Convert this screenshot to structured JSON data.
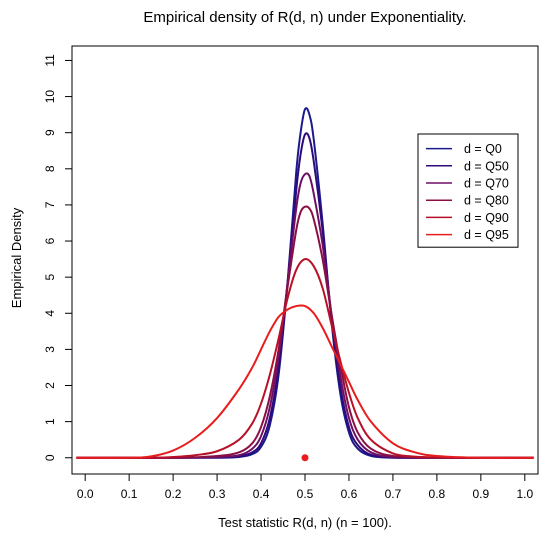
{
  "chart_data": {
    "type": "line",
    "title": "Empirical density of R(d, n) under Exponentiality.",
    "xlabel": "Test statistic R(d, n) (n = 100).",
    "ylabel": "Empirical Density",
    "xlim": [
      -0.03,
      1.03
    ],
    "ylim": [
      -0.45,
      11.4
    ],
    "xticks": [
      "0.0",
      "0.1",
      "0.2",
      "0.3",
      "0.4",
      "0.5",
      "0.6",
      "0.7",
      "0.8",
      "0.9",
      "1.0"
    ],
    "yticks": [
      "0",
      "1",
      "2",
      "3",
      "4",
      "5",
      "6",
      "7",
      "8",
      "9",
      "10",
      "11"
    ],
    "grid": false,
    "legend_position": "right",
    "series": [
      {
        "name": "d = Q0",
        "color": "#1a1a8c",
        "x": [
          -0.02,
          0.2,
          0.3,
          0.35,
          0.38,
          0.4,
          0.42,
          0.44,
          0.46,
          0.48,
          0.49,
          0.5,
          0.51,
          0.52,
          0.54,
          0.56,
          0.58,
          0.6,
          0.62,
          0.65,
          0.7,
          0.8,
          1.02
        ],
        "y": [
          0,
          0,
          0,
          0.02,
          0.1,
          0.3,
          0.9,
          2.3,
          4.8,
          7.9,
          9.0,
          9.65,
          9.5,
          8.8,
          6.5,
          3.8,
          1.8,
          0.7,
          0.25,
          0.05,
          0,
          0,
          0
        ]
      },
      {
        "name": "d = Q50",
        "color": "#2e0a7a",
        "x": [
          -0.02,
          0.2,
          0.3,
          0.35,
          0.38,
          0.4,
          0.42,
          0.44,
          0.46,
          0.48,
          0.49,
          0.5,
          0.51,
          0.52,
          0.54,
          0.56,
          0.58,
          0.6,
          0.62,
          0.65,
          0.7,
          0.8,
          1.02
        ],
        "y": [
          0,
          0,
          0.01,
          0.04,
          0.15,
          0.4,
          1.1,
          2.5,
          4.8,
          7.4,
          8.4,
          8.95,
          8.85,
          8.2,
          6.3,
          3.9,
          2.0,
          0.85,
          0.35,
          0.08,
          0.01,
          0,
          0
        ]
      },
      {
        "name": "d = Q70",
        "color": "#6e0f66",
        "x": [
          -0.02,
          0.2,
          0.3,
          0.35,
          0.38,
          0.4,
          0.42,
          0.44,
          0.46,
          0.48,
          0.49,
          0.5,
          0.51,
          0.52,
          0.54,
          0.56,
          0.58,
          0.6,
          0.62,
          0.65,
          0.7,
          0.8,
          1.02
        ],
        "y": [
          0,
          0,
          0.02,
          0.07,
          0.25,
          0.6,
          1.4,
          2.8,
          4.8,
          6.9,
          7.6,
          7.85,
          7.8,
          7.3,
          5.9,
          4.0,
          2.3,
          1.1,
          0.5,
          0.15,
          0.02,
          0,
          0
        ]
      },
      {
        "name": "d = Q80",
        "color": "#8a0f45",
        "x": [
          -0.02,
          0.2,
          0.3,
          0.35,
          0.38,
          0.4,
          0.42,
          0.44,
          0.46,
          0.48,
          0.49,
          0.5,
          0.51,
          0.52,
          0.54,
          0.56,
          0.58,
          0.6,
          0.62,
          0.65,
          0.7,
          0.8,
          1.02
        ],
        "y": [
          0,
          0,
          0.05,
          0.15,
          0.4,
          0.85,
          1.7,
          3.0,
          4.7,
          6.3,
          6.8,
          6.95,
          6.9,
          6.6,
          5.5,
          4.0,
          2.6,
          1.4,
          0.7,
          0.25,
          0.05,
          0,
          0
        ]
      },
      {
        "name": "d = Q90",
        "color": "#b81026",
        "x": [
          -0.02,
          0.15,
          0.2,
          0.25,
          0.3,
          0.35,
          0.38,
          0.4,
          0.42,
          0.44,
          0.46,
          0.48,
          0.5,
          0.52,
          0.54,
          0.56,
          0.58,
          0.6,
          0.62,
          0.65,
          0.7,
          0.75,
          0.8,
          0.9,
          1.02
        ],
        "y": [
          0,
          0,
          0.02,
          0.07,
          0.18,
          0.5,
          0.95,
          1.5,
          2.3,
          3.3,
          4.4,
          5.2,
          5.5,
          5.3,
          4.7,
          3.7,
          2.7,
          1.8,
          1.1,
          0.5,
          0.12,
          0.03,
          0.01,
          0,
          0
        ]
      },
      {
        "name": "d = Q95",
        "color": "#e81d1d",
        "x": [
          -0.02,
          0.1,
          0.15,
          0.2,
          0.25,
          0.3,
          0.35,
          0.38,
          0.4,
          0.42,
          0.44,
          0.46,
          0.48,
          0.5,
          0.52,
          0.54,
          0.56,
          0.58,
          0.6,
          0.62,
          0.65,
          0.7,
          0.75,
          0.8,
          0.9,
          1.02
        ],
        "y": [
          0,
          0,
          0.04,
          0.2,
          0.55,
          1.1,
          1.9,
          2.5,
          3.0,
          3.5,
          3.9,
          4.1,
          4.2,
          4.2,
          4.0,
          3.6,
          3.1,
          2.6,
          2.1,
          1.6,
          1.0,
          0.4,
          0.15,
          0.05,
          0,
          0
        ]
      }
    ],
    "marker": {
      "x": 0.5,
      "y": 0,
      "color": "#e81d1d"
    }
  }
}
